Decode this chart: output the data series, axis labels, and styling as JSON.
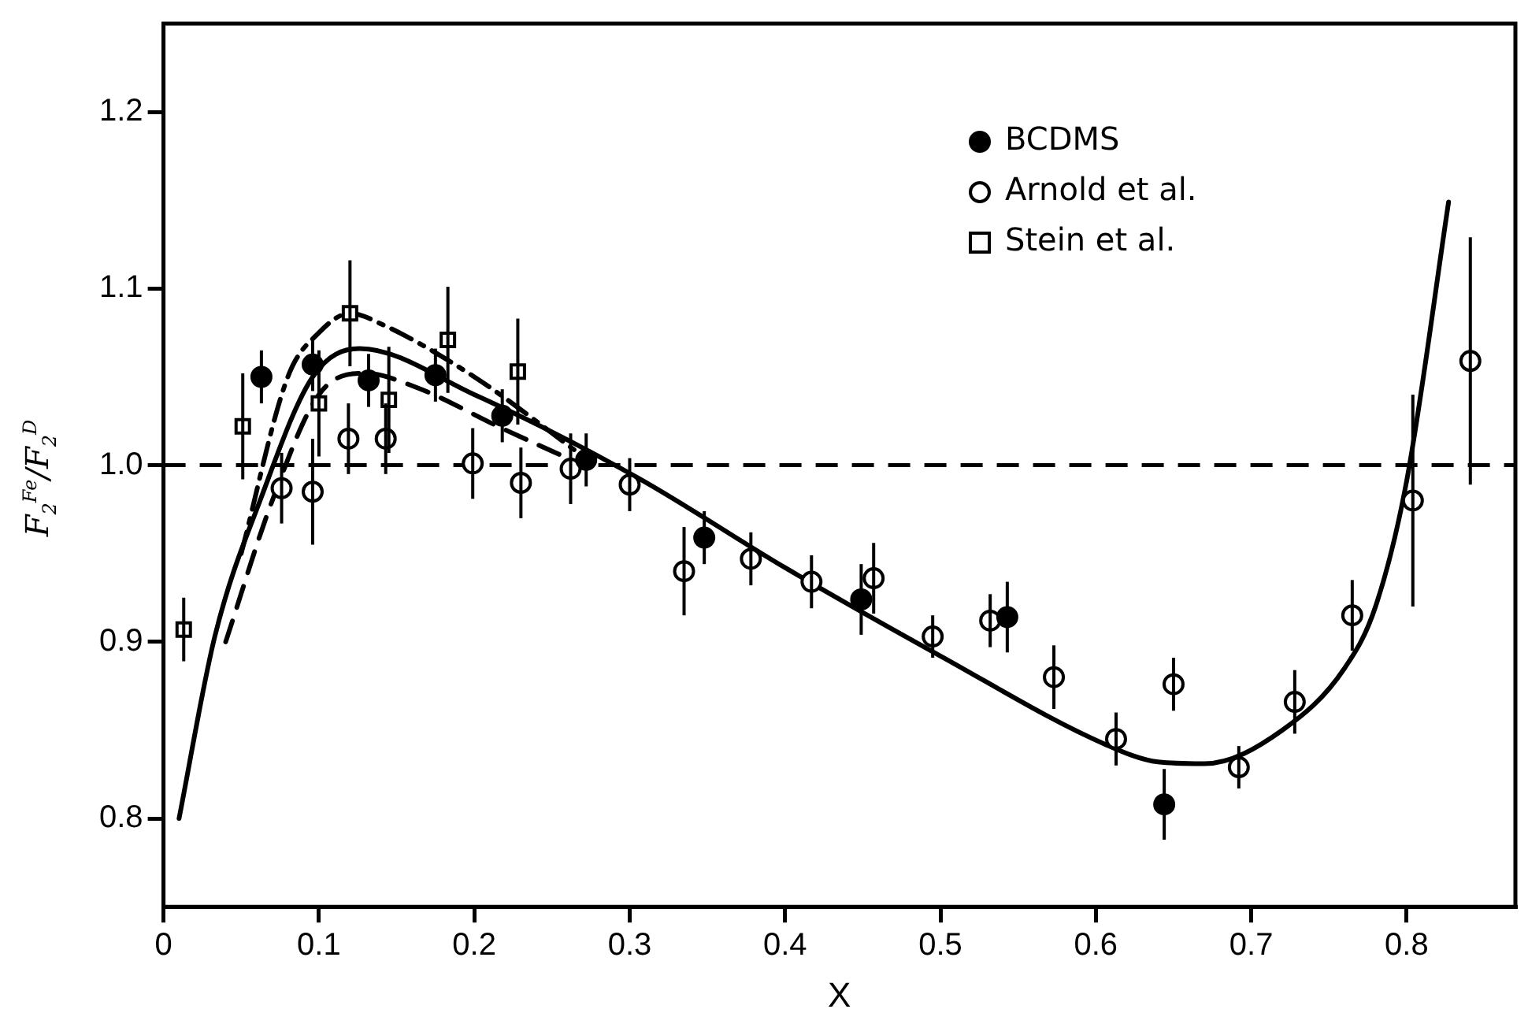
{
  "chart_data": {
    "type": "scatter",
    "xlabel": "X",
    "ylabel": "F$_{2}$$^{Fe}$/F$_{2}$$^{D}$",
    "xlim": [
      0,
      0.87
    ],
    "ylim": [
      0.75,
      1.25
    ],
    "xticks": [
      0,
      0.1,
      0.2,
      0.3,
      0.4,
      0.5,
      0.6,
      0.7,
      0.8
    ],
    "yticks": [
      0.8,
      0.9,
      {
        "value": 1,
        "label": "1.0"
      },
      1.1,
      1.2
    ],
    "grid": false,
    "legend": "top right",
    "ref_lines": [
      {
        "axis": "y",
        "value": 1,
        "line_style": "dashed",
        "color": "#000000"
      }
    ],
    "series": [
      {
        "name": "BCDMS",
        "marker": "circle",
        "color": "#000000",
        "x": [
          0.063,
          0.096,
          0.132,
          0.175,
          0.218,
          0.272,
          0.348,
          0.449,
          0.543,
          0.644
        ],
        "values": [
          1.05,
          1.057,
          1.048,
          1.051,
          1.028,
          1.003,
          0.959,
          0.924,
          0.914,
          0.808
        ],
        "errors": [
          0.015,
          0.015,
          0.015,
          0.015,
          0.015,
          0.015,
          0.015,
          0.02,
          0.02,
          0.02
        ]
      },
      {
        "name": "Arnold et al.",
        "marker": "circle",
        "color": "#ffffff",
        "x": [
          0.076,
          0.096,
          0.119,
          0.143,
          0.199,
          0.23,
          0.262,
          0.3,
          0.335,
          0.378,
          0.417,
          0.457,
          0.495,
          0.532,
          0.573,
          0.613,
          0.65,
          0.692,
          0.728,
          0.765,
          0.804,
          0.841
        ],
        "values": [
          0.987,
          0.985,
          1.015,
          1.015,
          1.001,
          0.99,
          0.998,
          0.989,
          0.94,
          0.947,
          0.934,
          0.936,
          0.903,
          0.912,
          0.88,
          0.845,
          0.876,
          0.829,
          0.866,
          0.915,
          0.98,
          1.059
        ],
        "errors": [
          0.02,
          0.03,
          0.02,
          0.02,
          0.02,
          0.02,
          0.02,
          0.015,
          0.025,
          0.015,
          0.015,
          0.02,
          0.012,
          0.015,
          0.018,
          0.015,
          0.015,
          0.012,
          0.018,
          0.02,
          0.06,
          0.07
        ]
      },
      {
        "name": "Stein et al.",
        "marker": "square",
        "color": "#ffffff",
        "x": [
          0.013,
          0.051,
          0.1,
          0.12,
          0.145,
          0.183,
          0.228
        ],
        "values": [
          0.907,
          1.022,
          1.035,
          1.086,
          1.037,
          1.071,
          1.053
        ],
        "errors": [
          0.018,
          0.03,
          0.03,
          0.03,
          0.03,
          0.03,
          0.03
        ]
      },
      {
        "type": "line",
        "line_style": "solid",
        "marker": "none",
        "color": "#000000",
        "x": [
          0.01,
          0.033,
          0.063,
          0.096,
          0.126,
          0.2,
          0.305,
          0.4,
          0.5,
          0.606,
          0.64,
          0.67,
          0.72,
          0.76,
          0.78,
          0.8,
          0.827
        ],
        "values": [
          0.8,
          0.903,
          0.982,
          1.05,
          1.066,
          1.04,
          0.993,
          0.942,
          0.892,
          0.842,
          0.832,
          0.831,
          0.85,
          0.885,
          0.92,
          0.991,
          1.149
        ]
      },
      {
        "type": "line",
        "line_style": "dashdot",
        "marker": "none",
        "color": "#000000",
        "x": [
          0.05,
          0.08,
          0.1,
          0.12,
          0.14,
          0.2,
          0.27
        ],
        "values": [
          0.95,
          1.05,
          1.075,
          1.086,
          1.08,
          1.05,
          1.005
        ]
      },
      {
        "type": "line",
        "line_style": "dashed",
        "marker": "none",
        "color": "#000000",
        "x": [
          0.04,
          0.07,
          0.1,
          0.13,
          0.16,
          0.22,
          0.27
        ],
        "values": [
          0.9,
          0.98,
          1.04,
          1.052,
          1.045,
          1.02,
          1.0
        ]
      }
    ]
  }
}
